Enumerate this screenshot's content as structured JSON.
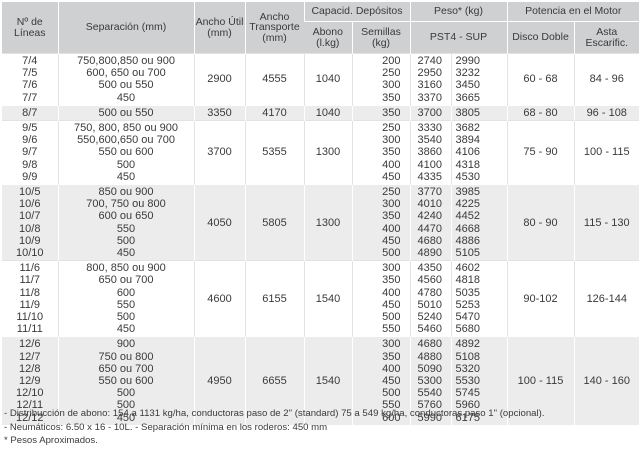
{
  "headers": {
    "lineas": "Nº de Líneas",
    "separacion": "Separación (mm)",
    "ancho_util": "Ancho Útil (mm)",
    "ancho_transporte": "Ancho Transporte (mm)",
    "capacidad": "Capacid. Depósitos",
    "abono": "Abono (l.kg)",
    "semillas": "Semillas (kg)",
    "peso": "Peso* (kg)",
    "peso_sub": "PST4 - SUP",
    "potencia": "Potencia en el Motor",
    "disco": "Disco Doble",
    "asta": "Asta Escarific."
  },
  "groups": [
    {
      "lineas": [
        "7/4",
        "7/5",
        "7/6",
        "7/7"
      ],
      "separacion": [
        "750,800,850 ou 900",
        "600, 650 ou 700",
        "500 ou 550",
        "450"
      ],
      "ancho_util": "2900",
      "ancho_transporte": "4555",
      "abono": "1040",
      "semillas": [
        "200",
        "250",
        "300",
        "350"
      ],
      "pst4": [
        "2740",
        "2950",
        "3160",
        "3370"
      ],
      "sup": [
        "2990",
        "3232",
        "3450",
        "3665"
      ],
      "disco": "60 - 68",
      "asta": "84 - 96"
    },
    {
      "lineas": [
        "8/7"
      ],
      "separacion": [
        "500 ou 550"
      ],
      "ancho_util": "3350",
      "ancho_transporte": "4170",
      "abono": "1040",
      "semillas": [
        "350"
      ],
      "pst4": [
        "3700"
      ],
      "sup": [
        "3805"
      ],
      "disco": "68 - 80",
      "asta": "96 - 108"
    },
    {
      "lineas": [
        "9/5",
        "9/6",
        "9/7",
        "9/8",
        "9/9"
      ],
      "separacion": [
        "750, 800, 850 ou 900",
        "550,600,650 ou 700",
        "550 ou 600",
        "500",
        "450"
      ],
      "ancho_util": "3700",
      "ancho_transporte": "5355",
      "abono": "1300",
      "semillas": [
        "250",
        "300",
        "350",
        "400",
        "450"
      ],
      "pst4": [
        "3330",
        "3540",
        "3860",
        "4100",
        "4335"
      ],
      "sup": [
        "3682",
        "3894",
        "4106",
        "4318",
        "4530"
      ],
      "disco": "75 - 90",
      "asta": "100 - 115"
    },
    {
      "lineas": [
        "10/5",
        "10/6",
        "10/7",
        "10/8",
        "10/9",
        "10/10"
      ],
      "separacion": [
        "850 ou 900",
        "700, 750 ou 800",
        "600 ou 650",
        "550",
        "500",
        "450"
      ],
      "ancho_util": "4050",
      "ancho_transporte": "5805",
      "abono": "1300",
      "semillas": [
        "250",
        "300",
        "350",
        "400",
        "450",
        "500"
      ],
      "pst4": [
        "3770",
        "4010",
        "4240",
        "4470",
        "4680",
        "4890"
      ],
      "sup": [
        "3985",
        "4225",
        "4452",
        "4668",
        "4886",
        "5105"
      ],
      "disco": "80 - 90",
      "asta": "115 - 130"
    },
    {
      "lineas": [
        "11/6",
        "11/7",
        "11/8",
        "11/9",
        "11/10",
        "11/11"
      ],
      "separacion": [
        "800, 850 ou 900",
        "650 ou 700",
        "600",
        "550",
        "500",
        "450"
      ],
      "ancho_util": "4600",
      "ancho_transporte": "6155",
      "abono": "1540",
      "semillas": [
        "300",
        "350",
        "400",
        "450",
        "500",
        "550"
      ],
      "pst4": [
        "4350",
        "4560",
        "4780",
        "5010",
        "5240",
        "5460"
      ],
      "sup": [
        "4602",
        "4818",
        "5035",
        "5253",
        "5470",
        "5680"
      ],
      "disco": "90-102",
      "asta": "126-144"
    },
    {
      "lineas": [
        "12/6",
        "12/7",
        "12/8",
        "12/9",
        "12/10",
        "12/11",
        "12/12"
      ],
      "separacion": [
        "900",
        "750 ou 800",
        "650 ou 700",
        "550 ou 600",
        "500",
        "500",
        "450"
      ],
      "ancho_util": "4950",
      "ancho_transporte": "6655",
      "abono": "1540",
      "semillas": [
        "300",
        "350",
        "400",
        "450",
        "500",
        "550",
        "600"
      ],
      "pst4": [
        "4680",
        "4880",
        "5090",
        "5300",
        "5540",
        "5760",
        "5990"
      ],
      "sup": [
        "4892",
        "5108",
        "5320",
        "5530",
        "5745",
        "5960",
        "6175"
      ],
      "disco": "100 - 115",
      "asta": "140 - 160"
    }
  ],
  "notes": [
    "- Distribucción de abono: 154 a 1131 kg/ha, conductoras paso de 2\" (standard) 75 a 549 kg/ha, conductoras paso 1\" (opcional).",
    "- Neumáticos: 6.50 x 16 - 10L. - Separación mínima en los roderos: 450 mm",
    "* Pesos Aproximados."
  ]
}
